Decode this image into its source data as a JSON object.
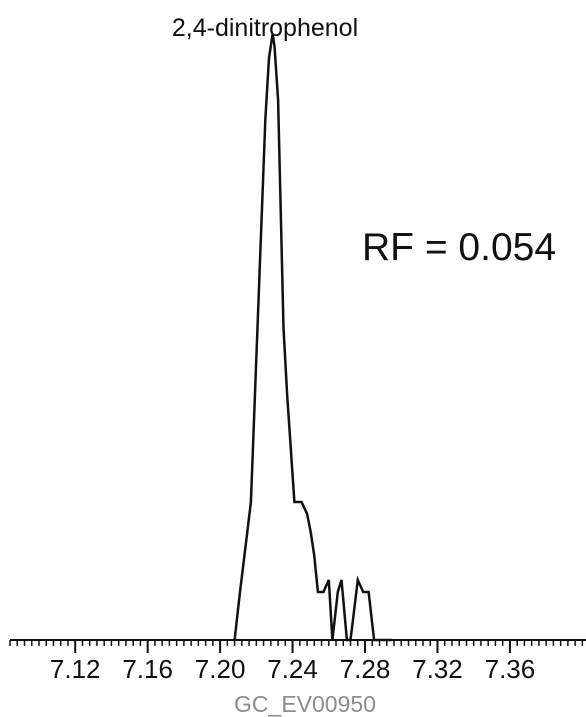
{
  "chart_data": {
    "type": "line",
    "title": "2,4-dinitrophenol",
    "annotation": "RF = 0.054",
    "xlabel": "",
    "ylabel": "",
    "source_code": "GC_EV00950",
    "xlim": [
      7.084,
      7.402
    ],
    "ylim": [
      0,
      100
    ],
    "grid": false,
    "x_ticks": [
      7.12,
      7.16,
      7.2,
      7.24,
      7.28,
      7.32,
      7.36
    ],
    "x_tick_labels": [
      "7.12",
      "7.16",
      "7.20",
      "7.24",
      "7.28",
      "7.32",
      "7.36"
    ],
    "minor_tick_step": 0.004,
    "series": [
      {
        "color": "#111111",
        "x": [
          7.208,
          7.211,
          7.215,
          7.217,
          7.225,
          7.227,
          7.229,
          7.23,
          7.232,
          7.235,
          7.237,
          7.241,
          7.245,
          7.248,
          7.25,
          7.252,
          7.254,
          7.257,
          7.26,
          7.262,
          7.265,
          7.267,
          7.27,
          7.272,
          7.276,
          7.279,
          7.282,
          7.285,
          7.287,
          7.29,
          7.293,
          7.295
        ],
        "values": [
          0,
          8,
          18,
          23,
          87,
          97,
          101,
          99,
          90,
          52,
          41,
          23,
          23,
          21,
          18,
          14,
          8,
          8,
          10,
          0,
          8,
          10,
          0,
          0,
          10,
          8,
          8,
          0,
          0,
          0,
          0,
          0
        ]
      }
    ],
    "colors": {
      "axis": "#111111",
      "line": "#111111",
      "text": "#111111",
      "source": "#8c8c8c"
    }
  }
}
